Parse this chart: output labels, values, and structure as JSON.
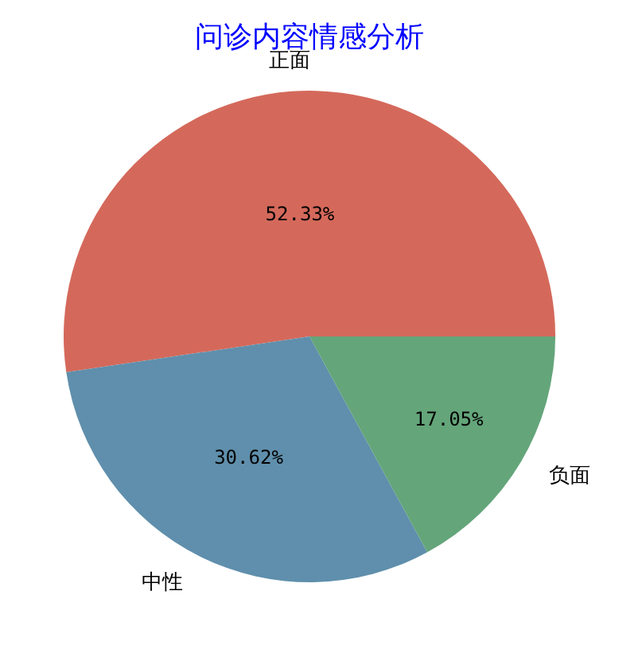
{
  "chart_data": {
    "type": "pie",
    "title": "问诊内容情感分析",
    "categories": [
      "正面",
      "中性",
      "负面"
    ],
    "values": [
      52.33,
      30.62,
      17.05
    ],
    "value_labels": [
      "52.33%",
      "30.62%",
      "17.05%"
    ],
    "colors": [
      "#d4695b",
      "#5f8fac",
      "#64a57a"
    ]
  }
}
